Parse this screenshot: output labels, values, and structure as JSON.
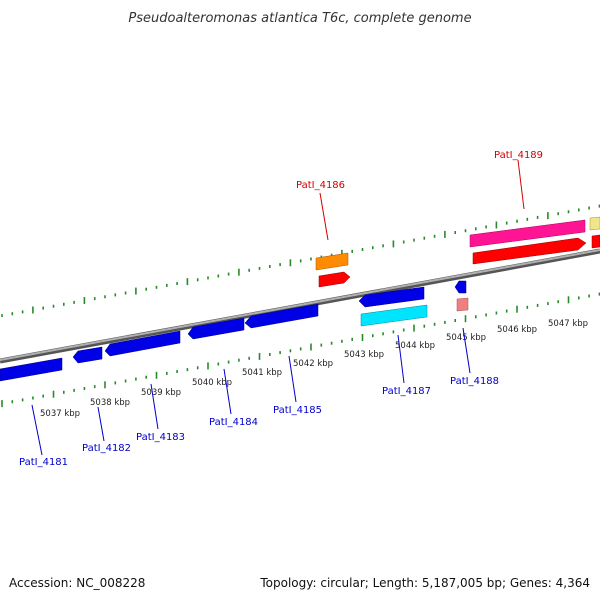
{
  "title": "Pseudoalteromonas atlantica T6c, complete genome",
  "footer": {
    "accession": "Accession: NC_008228",
    "summary": "Topology: circular; Length: 5,187,005 bp; Genes: 4,364"
  },
  "colors": {
    "background": "#ffffff",
    "backbone": "#8a8a8a",
    "tick": "#2a8a2a",
    "label_forward": "#d40000",
    "label_reverse": "#0000cc"
  },
  "scale_labels": [
    "5037 kbp",
    "5038 kbp",
    "5039 kbp",
    "5040 kbp",
    "5041 kbp",
    "5042 kbp",
    "5043 kbp",
    "5044 kbp",
    "5045 kbp",
    "5046 kbp",
    "5047 kbp"
  ],
  "gene_labels": {
    "patl_4181": "PatI_4181",
    "patl_4182": "PatI_4182",
    "patl_4183": "PatI_4183",
    "patl_4184": "PatI_4184",
    "patl_4185": "PatI_4185",
    "patl_4186": "PatI_4186",
    "patl_4187": "PatI_4187",
    "patl_4188": "PatI_4188",
    "patl_4189": "PatI_4189"
  },
  "feature_colors": {
    "gene_reverse": "#0000e6",
    "cds_reverse": "#00e5ff",
    "rna_reverse": "#f08080",
    "orange_feature": "#ff8c00",
    "cds_forward": "#ff0000",
    "magenta_feature": "#ff1493",
    "pale_feature": "#f0e68c"
  }
}
